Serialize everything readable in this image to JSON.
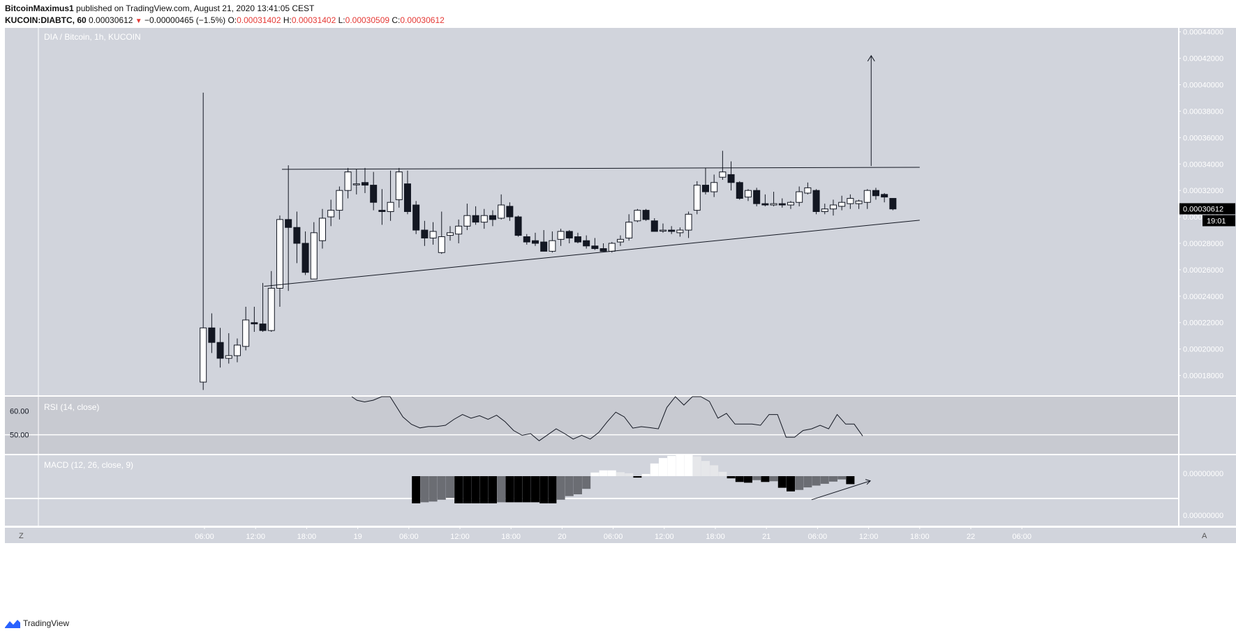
{
  "header": {
    "author": "BitcoinMaximus1",
    "published_text": "published on TradingView.com, August 21, 2020 13:41:05 CEST",
    "symbol": "KUCOIN:DIABTC, 60",
    "last": "0.00030612",
    "change_arrow": "▼",
    "change": "−0.00000465 (−1.5%)",
    "o_label": "O:",
    "o": "0.00031402",
    "h_label": "H:",
    "h": "0.00031402",
    "l_label": "L:",
    "l": "0.00030509",
    "c_label": "C:",
    "c": "0.00030612"
  },
  "chart_data": {
    "type": "candlestick",
    "title": "DIA / Bitcoin, 1h, KUCOIN",
    "price_axis": {
      "ticks": [
        "0.00044000",
        "0.00042000",
        "0.00040000",
        "0.00038000",
        "0.00036000",
        "0.00034000",
        "0.00032000",
        "0.00030000",
        "0.00028000",
        "0.00026000",
        "0.00024000",
        "0.00022000",
        "0.00020000",
        "0.00018000"
      ],
      "range": [
        0.000165,
        0.000443
      ]
    },
    "time_axis": {
      "ticks": [
        {
          "h": 5,
          "label": "06:00"
        },
        {
          "h": 11,
          "label": "12:00"
        },
        {
          "h": 17,
          "label": "18:00"
        },
        {
          "h": 23,
          "label": "19"
        },
        {
          "h": 29,
          "label": "06:00"
        },
        {
          "h": 35,
          "label": "12:00"
        },
        {
          "h": 41,
          "label": "18:00"
        },
        {
          "h": 47,
          "label": "20"
        },
        {
          "h": 53,
          "label": "06:00"
        },
        {
          "h": 59,
          "label": "12:00"
        },
        {
          "h": 65,
          "label": "18:00"
        },
        {
          "h": 71,
          "label": "21"
        },
        {
          "h": 77,
          "label": "06:00"
        },
        {
          "h": 83,
          "label": "12:00"
        },
        {
          "h": 89,
          "label": "18:00"
        },
        {
          "h": 95,
          "label": "22"
        },
        {
          "h": 101,
          "label": "06:00"
        }
      ]
    },
    "candles": [
      {
        "h": 4.85,
        "o": 0.000175,
        "hi": 0.000394,
        "l": 0.000169,
        "c": 0.000216
      },
      {
        "h": 5.85,
        "o": 0.000216,
        "hi": 0.000227,
        "l": 0.000197,
        "c": 0.000205
      },
      {
        "h": 6.85,
        "o": 0.000205,
        "hi": 0.000216,
        "l": 0.000186,
        "c": 0.000193
      },
      {
        "h": 7.85,
        "o": 0.000193,
        "hi": 0.000212,
        "l": 0.000189,
        "c": 0.000195
      },
      {
        "h": 8.85,
        "o": 0.000195,
        "hi": 0.000208,
        "l": 0.00019,
        "c": 0.000203
      },
      {
        "h": 9.85,
        "o": 0.000202,
        "hi": 0.000232,
        "l": 0.000199,
        "c": 0.000222
      },
      {
        "h": 10.85,
        "o": 0.00022,
        "hi": 0.000232,
        "l": 0.000213,
        "c": 0.000219
      },
      {
        "h": 11.85,
        "o": 0.000219,
        "hi": 0.00025,
        "l": 0.000213,
        "c": 0.000214
      },
      {
        "h": 12.85,
        "o": 0.000214,
        "hi": 0.000259,
        "l": 0.000213,
        "c": 0.000246
      },
      {
        "h": 13.85,
        "o": 0.000246,
        "hi": 0.000301,
        "l": 0.000232,
        "c": 0.000298
      },
      {
        "h": 14.85,
        "o": 0.000298,
        "hi": 0.000339,
        "l": 0.000244,
        "c": 0.000292
      },
      {
        "h": 15.85,
        "o": 0.000292,
        "hi": 0.000304,
        "l": 0.000265,
        "c": 0.00028
      },
      {
        "h": 16.85,
        "o": 0.00028,
        "hi": 0.000289,
        "l": 0.000256,
        "c": 0.000258
      },
      {
        "h": 17.85,
        "o": 0.000253,
        "hi": 0.000296,
        "l": 0.000253,
        "c": 0.000288
      },
      {
        "h": 18.85,
        "o": 0.000282,
        "hi": 0.000306,
        "l": 0.000276,
        "c": 0.000299
      },
      {
        "h": 19.85,
        "o": 0.0003,
        "hi": 0.000313,
        "l": 0.000293,
        "c": 0.000305
      },
      {
        "h": 20.85,
        "o": 0.000305,
        "hi": 0.000323,
        "l": 0.000298,
        "c": 0.00032
      },
      {
        "h": 21.85,
        "o": 0.00032,
        "hi": 0.000337,
        "l": 0.000314,
        "c": 0.000334
      },
      {
        "h": 22.85,
        "o": 0.000325,
        "hi": 0.000336,
        "l": 0.000317,
        "c": 0.000325
      },
      {
        "h": 23.85,
        "o": 0.000326,
        "hi": 0.000337,
        "l": 0.000318,
        "c": 0.000324
      },
      {
        "h": 24.85,
        "o": 0.000324,
        "hi": 0.000334,
        "l": 0.000305,
        "c": 0.000311
      },
      {
        "h": 25.85,
        "o": 0.000305,
        "hi": 0.000321,
        "l": 0.000294,
        "c": 0.000304
      },
      {
        "h": 26.85,
        "o": 0.000304,
        "hi": 0.000335,
        "l": 0.000297,
        "c": 0.000311
      },
      {
        "h": 27.85,
        "o": 0.000313,
        "hi": 0.000337,
        "l": 0.000307,
        "c": 0.000334
      },
      {
        "h": 28.85,
        "o": 0.000325,
        "hi": 0.000335,
        "l": 0.000302,
        "c": 0.000304
      },
      {
        "h": 29.85,
        "o": 0.000309,
        "hi": 0.000312,
        "l": 0.000287,
        "c": 0.00029
      },
      {
        "h": 30.85,
        "o": 0.00029,
        "hi": 0.000297,
        "l": 0.000278,
        "c": 0.000284
      },
      {
        "h": 31.85,
        "o": 0.000284,
        "hi": 0.000296,
        "l": 0.000279,
        "c": 0.000289
      },
      {
        "h": 32.85,
        "o": 0.000273,
        "hi": 0.000304,
        "l": 0.000272,
        "c": 0.000285
      },
      {
        "h": 33.85,
        "o": 0.000286,
        "hi": 0.000293,
        "l": 0.000282,
        "c": 0.000288
      },
      {
        "h": 34.85,
        "o": 0.000287,
        "hi": 0.000298,
        "l": 0.00028,
        "c": 0.000293
      },
      {
        "h": 35.85,
        "o": 0.000293,
        "hi": 0.00031,
        "l": 0.00029,
        "c": 0.000301
      },
      {
        "h": 36.85,
        "o": 0.000301,
        "hi": 0.000308,
        "l": 0.000294,
        "c": 0.000296
      },
      {
        "h": 37.85,
        "o": 0.000296,
        "hi": 0.000306,
        "l": 0.000291,
        "c": 0.000301
      },
      {
        "h": 38.85,
        "o": 0.000301,
        "hi": 0.000305,
        "l": 0.000293,
        "c": 0.000298
      },
      {
        "h": 39.85,
        "o": 0.000299,
        "hi": 0.000317,
        "l": 0.000298,
        "c": 0.000309
      },
      {
        "h": 40.85,
        "o": 0.000308,
        "hi": 0.000311,
        "l": 0.000297,
        "c": 0.0003
      },
      {
        "h": 41.85,
        "o": 0.0003,
        "hi": 0.000301,
        "l": 0.000285,
        "c": 0.000286
      },
      {
        "h": 42.85,
        "o": 0.000285,
        "hi": 0.000287,
        "l": 0.000279,
        "c": 0.000281
      },
      {
        "h": 43.85,
        "o": 0.000282,
        "hi": 0.000288,
        "l": 0.000278,
        "c": 0.00028
      },
      {
        "h": 44.85,
        "o": 0.000281,
        "hi": 0.00029,
        "l": 0.000275,
        "c": 0.000274
      },
      {
        "h": 45.85,
        "o": 0.000274,
        "hi": 0.000289,
        "l": 0.000273,
        "c": 0.000282
      },
      {
        "h": 46.85,
        "o": 0.000283,
        "hi": 0.000291,
        "l": 0.000278,
        "c": 0.000289
      },
      {
        "h": 47.85,
        "o": 0.000289,
        "hi": 0.00029,
        "l": 0.00028,
        "c": 0.000284
      },
      {
        "h": 48.85,
        "o": 0.000285,
        "hi": 0.000288,
        "l": 0.00028,
        "c": 0.000281
      },
      {
        "h": 49.85,
        "o": 0.000282,
        "hi": 0.000286,
        "l": 0.000276,
        "c": 0.000278
      },
      {
        "h": 50.85,
        "o": 0.000278,
        "hi": 0.000284,
        "l": 0.000275,
        "c": 0.000276
      },
      {
        "h": 51.85,
        "o": 0.000276,
        "hi": 0.00028,
        "l": 0.000274,
        "c": 0.000274
      },
      {
        "h": 52.85,
        "o": 0.000274,
        "hi": 0.000281,
        "l": 0.000273,
        "c": 0.00028
      },
      {
        "h": 53.85,
        "o": 0.000281,
        "hi": 0.000286,
        "l": 0.000278,
        "c": 0.000283
      },
      {
        "h": 54.85,
        "o": 0.000284,
        "hi": 0.000302,
        "l": 0.000282,
        "c": 0.000296
      },
      {
        "h": 55.85,
        "o": 0.000297,
        "hi": 0.000306,
        "l": 0.000296,
        "c": 0.000305
      },
      {
        "h": 56.85,
        "o": 0.000305,
        "hi": 0.000306,
        "l": 0.000297,
        "c": 0.000298
      },
      {
        "h": 57.85,
        "o": 0.000297,
        "hi": 0.000299,
        "l": 0.000289,
        "c": 0.000289
      },
      {
        "h": 58.85,
        "o": 0.00029,
        "hi": 0.000295,
        "l": 0.000288,
        "c": 0.00029
      },
      {
        "h": 59.85,
        "o": 0.00029,
        "hi": 0.000293,
        "l": 0.000287,
        "c": 0.000289
      },
      {
        "h": 60.85,
        "o": 0.000288,
        "hi": 0.000292,
        "l": 0.000285,
        "c": 0.00029
      },
      {
        "h": 61.85,
        "o": 0.00029,
        "hi": 0.000304,
        "l": 0.000284,
        "c": 0.000302
      },
      {
        "h": 62.85,
        "o": 0.000305,
        "hi": 0.000327,
        "l": 0.000302,
        "c": 0.000324
      },
      {
        "h": 63.85,
        "o": 0.000324,
        "hi": 0.000337,
        "l": 0.000317,
        "c": 0.000319
      },
      {
        "h": 64.85,
        "o": 0.000319,
        "hi": 0.000332,
        "l": 0.000315,
        "c": 0.000326
      },
      {
        "h": 65.85,
        "o": 0.00033,
        "hi": 0.00035,
        "l": 0.000328,
        "c": 0.000334
      },
      {
        "h": 66.85,
        "o": 0.000332,
        "hi": 0.000342,
        "l": 0.00032,
        "c": 0.000326
      },
      {
        "h": 67.85,
        "o": 0.000326,
        "hi": 0.000327,
        "l": 0.000313,
        "c": 0.000314
      },
      {
        "h": 68.85,
        "o": 0.000315,
        "hi": 0.000321,
        "l": 0.000312,
        "c": 0.00032
      },
      {
        "h": 69.85,
        "o": 0.00032,
        "hi": 0.000322,
        "l": 0.000308,
        "c": 0.00031
      },
      {
        "h": 70.85,
        "o": 0.00031,
        "hi": 0.000317,
        "l": 0.000308,
        "c": 0.000309
      },
      {
        "h": 71.85,
        "o": 0.000309,
        "hi": 0.000319,
        "l": 0.000308,
        "c": 0.00031
      },
      {
        "h": 72.85,
        "o": 0.00031,
        "hi": 0.000314,
        "l": 0.000307,
        "c": 0.000309
      },
      {
        "h": 73.85,
        "o": 0.000309,
        "hi": 0.000312,
        "l": 0.000306,
        "c": 0.000311
      },
      {
        "h": 74.85,
        "o": 0.000311,
        "hi": 0.000323,
        "l": 0.000308,
        "c": 0.000319
      },
      {
        "h": 75.85,
        "o": 0.000318,
        "hi": 0.000326,
        "l": 0.000317,
        "c": 0.000322
      },
      {
        "h": 76.85,
        "o": 0.00032,
        "hi": 0.000321,
        "l": 0.000302,
        "c": 0.000304
      },
      {
        "h": 77.85,
        "o": 0.000304,
        "hi": 0.00031,
        "l": 0.000302,
        "c": 0.000306
      },
      {
        "h": 78.85,
        "o": 0.000306,
        "hi": 0.000313,
        "l": 0.000301,
        "c": 0.000309
      },
      {
        "h": 79.85,
        "o": 0.000308,
        "hi": 0.000316,
        "l": 0.000305,
        "c": 0.000311
      },
      {
        "h": 80.85,
        "o": 0.00031,
        "hi": 0.000317,
        "l": 0.000306,
        "c": 0.000314
      },
      {
        "h": 81.85,
        "o": 0.00031,
        "hi": 0.000313,
        "l": 0.000306,
        "c": 0.000312
      },
      {
        "h": 82.85,
        "o": 0.000311,
        "hi": 0.000321,
        "l": 0.000306,
        "c": 0.00032
      },
      {
        "h": 83.85,
        "o": 0.00032,
        "hi": 0.000322,
        "l": 0.000313,
        "c": 0.000316
      },
      {
        "h": 84.85,
        "o": 0.000317,
        "hi": 0.000318,
        "l": 0.000311,
        "c": 0.000315
      },
      {
        "h": 85.85,
        "o": 0.000314,
        "hi": 0.000314,
        "l": 0.000305,
        "c": 0.000306
      }
    ],
    "trendlines": [
      {
        "name": "resistance",
        "from": {
          "h": 14.1,
          "p": 0.000336
        },
        "to": {
          "h": 89,
          "p": 0.0003375
        }
      },
      {
        "name": "support",
        "from": {
          "h": 12,
          "p": 0.0002475
        },
        "to": {
          "h": 89,
          "p": 0.0002975
        }
      },
      {
        "name": "target-arrow",
        "from": {
          "h": 83.3,
          "p": 0.0003385
        },
        "to": {
          "h": 83.3,
          "p": 0.000422
        }
      }
    ],
    "last_price_label": "0.00030612",
    "countdown_label": "19:01",
    "rsi": {
      "title": "RSI (14, close)",
      "ticks": [
        "60.00",
        "50.00"
      ],
      "baseline": 50,
      "range": [
        42,
        66
      ],
      "points": [
        [
          22.3,
          66
        ],
        [
          22.9,
          64.5
        ],
        [
          23.8,
          63.8
        ],
        [
          24.8,
          64.5
        ],
        [
          25.8,
          67
        ],
        [
          26.8,
          68
        ],
        [
          28.3,
          57.5
        ],
        [
          29.3,
          54.4
        ],
        [
          30.3,
          52.9
        ],
        [
          31.3,
          53.5
        ],
        [
          32.3,
          53.5
        ],
        [
          33.3,
          54
        ],
        [
          34.3,
          56.5
        ],
        [
          35.3,
          58.5
        ],
        [
          36.3,
          57
        ],
        [
          37.3,
          58
        ],
        [
          38.3,
          56.5
        ],
        [
          39.3,
          58.2
        ],
        [
          40.3,
          55.5
        ],
        [
          41.3,
          51.8
        ],
        [
          42.3,
          49.8
        ],
        [
          43.3,
          50.5
        ],
        [
          44.3,
          47.5
        ],
        [
          45.3,
          50
        ],
        [
          46.3,
          52.5
        ],
        [
          47.3,
          50.5
        ],
        [
          48.3,
          48.2
        ],
        [
          49.3,
          49.8
        ],
        [
          50.3,
          48.2
        ],
        [
          51.3,
          51
        ],
        [
          52.3,
          55.5
        ],
        [
          53.3,
          59.5
        ],
        [
          54.3,
          57.5
        ],
        [
          55.3,
          52.8
        ],
        [
          56.3,
          53.4
        ],
        [
          57.3,
          53
        ],
        [
          58.3,
          52.5
        ],
        [
          59.3,
          61.5
        ],
        [
          60.3,
          66
        ],
        [
          61.3,
          62.5
        ],
        [
          62.3,
          66
        ],
        [
          63.3,
          67
        ],
        [
          64.3,
          64
        ],
        [
          65.3,
          57
        ],
        [
          66.3,
          59
        ],
        [
          67.3,
          54.5
        ],
        [
          68.3,
          54.5
        ],
        [
          69.3,
          54.5
        ],
        [
          70.3,
          54
        ],
        [
          71.3,
          58.5
        ],
        [
          72.3,
          58.5
        ],
        [
          73.3,
          49
        ],
        [
          74.3,
          49
        ],
        [
          75.3,
          51.8
        ],
        [
          76.3,
          52.5
        ],
        [
          77.3,
          54
        ],
        [
          78.3,
          52.5
        ],
        [
          79.3,
          58.5
        ],
        [
          80.3,
          54.5
        ],
        [
          81.3,
          54.5
        ],
        [
          82.3,
          49.5
        ]
      ]
    },
    "macd": {
      "title": "MACD (12, 26, close, 9)",
      "ticks": [
        "0.00000000",
        "0.00000000"
      ],
      "histogram": [
        -7.5,
        -7.2,
        -7,
        -6.5,
        -6,
        -7.5,
        -7.5,
        -7.5,
        -7.5,
        -7.5,
        -7.2,
        -7.2,
        -7.2,
        -7.2,
        -7.2,
        -7.5,
        -7.5,
        -6.5,
        -5.5,
        -5,
        -3.5,
        1,
        1.6,
        1.6,
        1.1,
        0.8,
        -0.4,
        0.6,
        3.5,
        5,
        5.6,
        5.8,
        5.8,
        5.5,
        4.2,
        3,
        1.2,
        -0.6,
        -1.6,
        -1.8,
        -1.1,
        -1.6,
        -1.4,
        -3.2,
        -4.2,
        -3.8,
        -3.1,
        -2.6,
        -2.1,
        -1.5,
        -0.9,
        -2.2
      ],
      "hist_start_h": 29.85,
      "value_range": [
        -8.5,
        7
      ],
      "divergence": {
        "from": {
          "h": 76.3,
          "v": -6.5
        },
        "to": {
          "h": 83.2,
          "v": -1.3
        }
      }
    },
    "scale_buttons": [
      "Z",
      "A"
    ]
  },
  "footer": {
    "brand": "TradingView"
  }
}
